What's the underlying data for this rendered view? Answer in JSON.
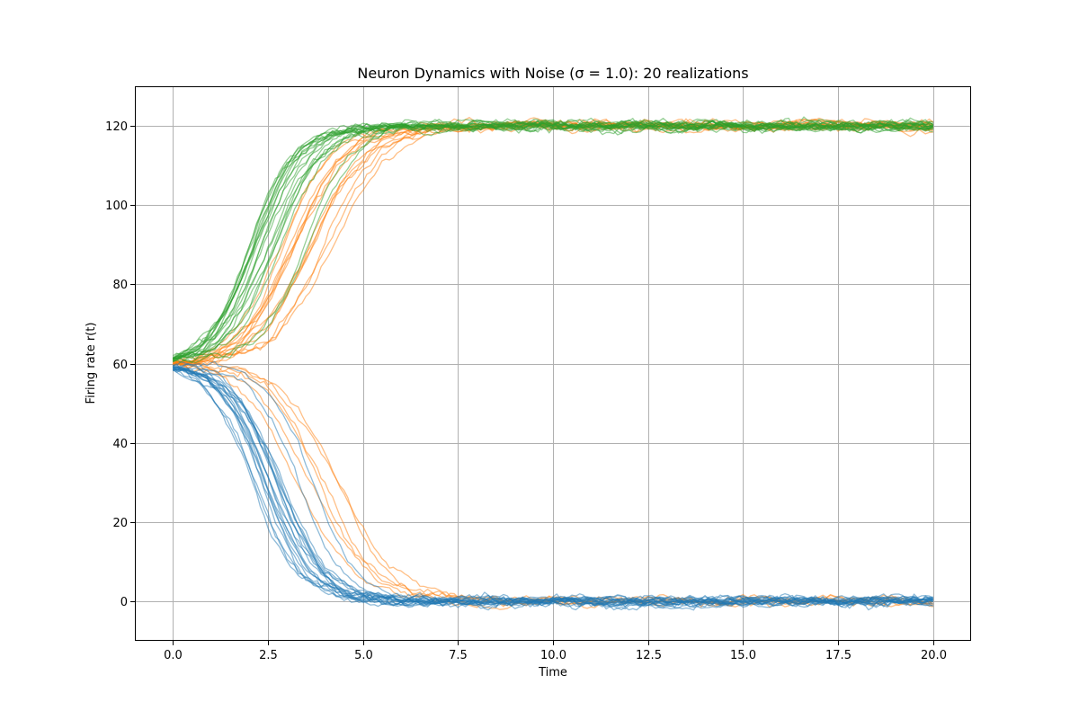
{
  "chart_data": {
    "type": "line",
    "title": "Neuron Dynamics with Noise (σ = 1.0): 20 realizations",
    "xlabel": "Time",
    "ylabel": "Firing rate r(t)",
    "xlim": [
      -1.0,
      21.0
    ],
    "ylim": [
      -10,
      130
    ],
    "xticks": [
      0.0,
      2.5,
      5.0,
      7.5,
      10.0,
      12.5,
      15.0,
      17.5,
      20.0
    ],
    "xtick_labels": [
      "0.0",
      "2.5",
      "5.0",
      "7.5",
      "10.0",
      "12.5",
      "15.0",
      "17.5",
      "20.0"
    ],
    "yticks": [
      0,
      20,
      40,
      60,
      80,
      100,
      120
    ],
    "ytick_labels": [
      "0",
      "20",
      "40",
      "60",
      "80",
      "100",
      "120"
    ],
    "grid": true,
    "legend": "none",
    "realizations_per_group": 20,
    "x_range": [
      0,
      20
    ],
    "colors": {
      "group_start_59": "#1f77b4",
      "group_start_60": "#ff7f0e",
      "group_start_61": "#2ca02c"
    },
    "series": [
      {
        "color": "#1f77b4",
        "start_value": 59,
        "sample_values": [
          {
            "x": 0.0,
            "y": 59
          },
          {
            "x": 1.0,
            "y": 50
          },
          {
            "x": 2.0,
            "y": 30
          },
          {
            "x": 2.5,
            "y": 20
          },
          {
            "x": 3.0,
            "y": 12
          },
          {
            "x": 4.0,
            "y": 5
          },
          {
            "x": 5.0,
            "y": 2
          },
          {
            "x": 7.5,
            "y": 0.5
          },
          {
            "x": 10.0,
            "y": 0
          },
          {
            "x": 20.0,
            "y": 0
          }
        ],
        "outcomes": {
          "to_low": 20,
          "to_high": 0
        }
      },
      {
        "color": "#ff7f0e",
        "start_value": 60,
        "sample_values": [
          {
            "x": 0.0,
            "y": 60
          },
          {
            "x": 2.0,
            "y": 60
          },
          {
            "x": 3.0,
            "y": 75
          },
          {
            "x": 4.0,
            "y": 100
          },
          {
            "x": 5.0,
            "y": 114
          },
          {
            "x": 7.5,
            "y": 119
          },
          {
            "x": 10.0,
            "y": 120
          },
          {
            "x": 20.0,
            "y": 120
          }
        ],
        "outcomes": {
          "to_low": 6,
          "to_high": 14
        }
      },
      {
        "color": "#2ca02c",
        "start_value": 61,
        "sample_values": [
          {
            "x": 0.0,
            "y": 61
          },
          {
            "x": 1.0,
            "y": 68
          },
          {
            "x": 2.0,
            "y": 88
          },
          {
            "x": 2.5,
            "y": 98
          },
          {
            "x": 3.0,
            "y": 106
          },
          {
            "x": 4.0,
            "y": 114
          },
          {
            "x": 5.0,
            "y": 118
          },
          {
            "x": 7.5,
            "y": 120
          },
          {
            "x": 20.0,
            "y": 120
          }
        ],
        "outcomes": {
          "to_low": 0,
          "to_high": 20
        }
      }
    ]
  }
}
